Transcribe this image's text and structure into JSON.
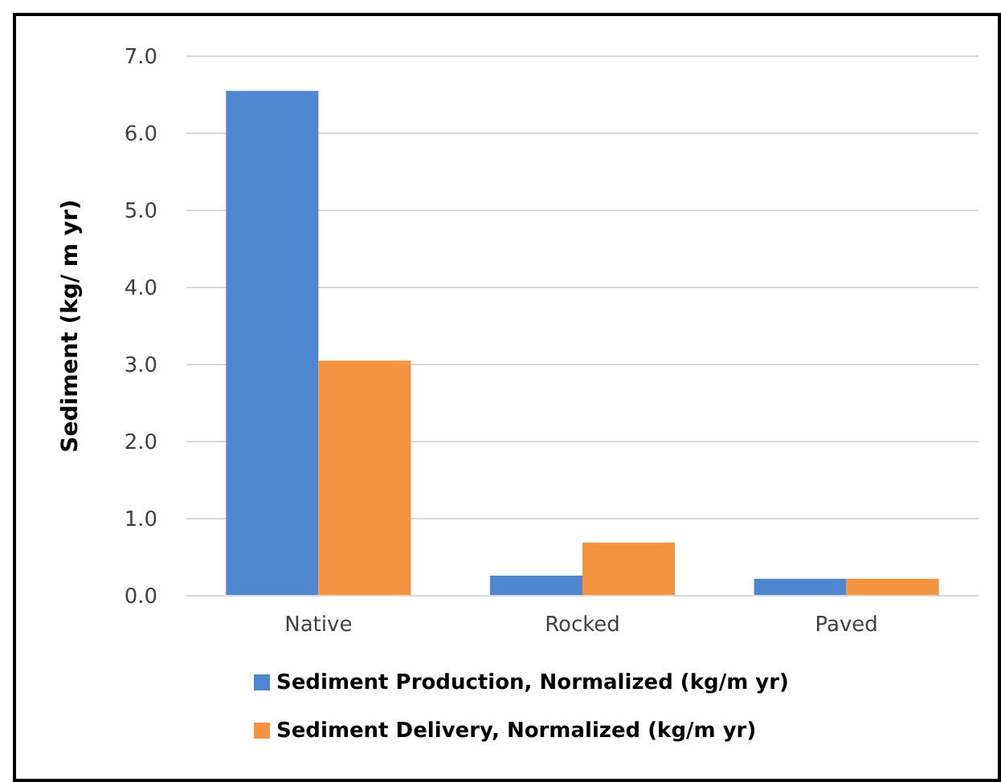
{
  "chart_data": {
    "type": "bar",
    "ylabel": "Sediment (kg/ m yr)",
    "categories": [
      "Native",
      "Rocked",
      "Paved"
    ],
    "series": [
      {
        "name": "Sediment Production, Normalized (kg/m yr)",
        "color": "#4f86d0",
        "values": [
          6.55,
          0.26,
          0.22
        ]
      },
      {
        "name": "Sediment Delivery, Normalized (kg/m yr)",
        "color": "#f59440",
        "values": [
          3.05,
          0.69,
          0.22
        ]
      }
    ],
    "ylim": [
      0,
      7
    ],
    "yticks": [
      {
        "value": 0,
        "label": "0.0"
      },
      {
        "value": 1,
        "label": "1.0"
      },
      {
        "value": 2,
        "label": "2.0"
      },
      {
        "value": 3,
        "label": "3.0"
      },
      {
        "value": 4,
        "label": "4.0"
      },
      {
        "value": 5,
        "label": "5.0"
      },
      {
        "value": 6,
        "label": "6.0"
      },
      {
        "value": 7,
        "label": "7.0"
      }
    ],
    "grid": "y",
    "legend": "bottom"
  }
}
